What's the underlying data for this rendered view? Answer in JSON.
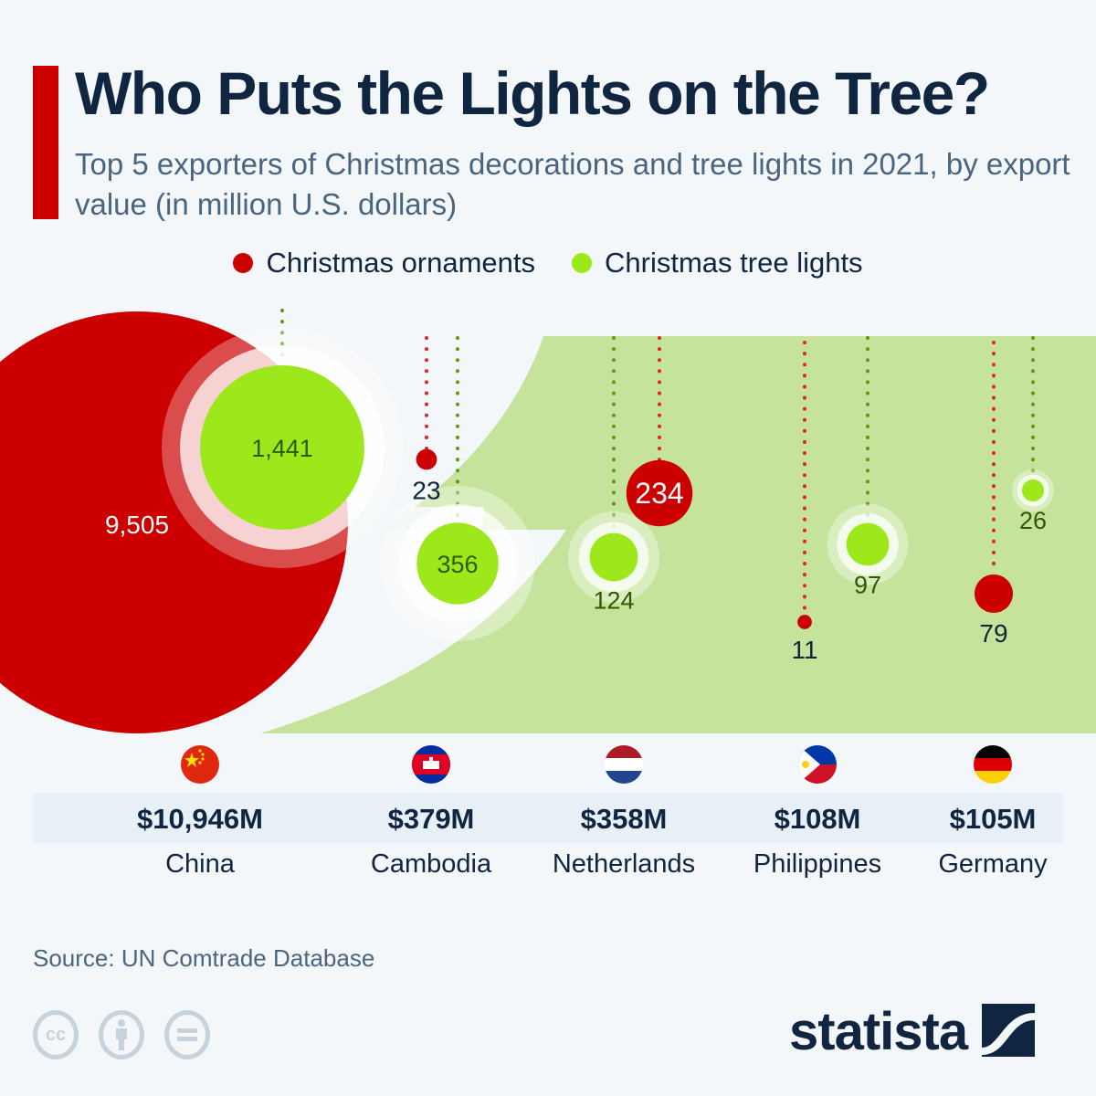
{
  "header": {
    "title": "Who Puts the Lights on the Tree?",
    "subtitle": "Top 5 exporters of Christmas decorations and tree lights in 2021, by export value (in million U.S. dollars)"
  },
  "colors": {
    "ornaments": "#cc0000",
    "lights": "#9de81a",
    "accent": "#cc0000",
    "text": "#0f2540",
    "background_green": "#c6e39b"
  },
  "legend": [
    {
      "label": "Christmas ornaments",
      "color": "#cc0000"
    },
    {
      "label": "Christmas tree lights",
      "color": "#9de81a"
    }
  ],
  "chart_data": {
    "type": "bubble",
    "title": "Who Puts the Lights on the Tree?",
    "subtitle": "Top 5 exporters of Christmas decorations and tree lights in 2021, by export value (in million U.S. dollars)",
    "categories": [
      "China",
      "Cambodia",
      "Netherlands",
      "Philippines",
      "Germany"
    ],
    "series": [
      {
        "name": "Christmas ornaments",
        "values": [
          9505,
          23,
          234,
          11,
          79
        ],
        "labels": [
          "9,505",
          "23",
          "234",
          "11",
          "79"
        ]
      },
      {
        "name": "Christmas tree lights",
        "values": [
          1441,
          356,
          124,
          97,
          26
        ],
        "labels": [
          "1,441",
          "356",
          "124",
          "97",
          "26"
        ]
      }
    ],
    "totals": [
      "$10,946M",
      "$379M",
      "$358M",
      "$108M",
      "$105M"
    ],
    "legend_position": "top-center"
  },
  "countries": [
    {
      "name": "China",
      "total": "$10,946M",
      "flag": "china-flag"
    },
    {
      "name": "Cambodia",
      "total": "$379M",
      "flag": "cambodia-flag"
    },
    {
      "name": "Netherlands",
      "total": "$358M",
      "flag": "netherlands-flag"
    },
    {
      "name": "Philippines",
      "total": "$108M",
      "flag": "philippines-flag"
    },
    {
      "name": "Germany",
      "total": "$105M",
      "flag": "germany-flag"
    }
  ],
  "footer": {
    "source": "Source: UN Comtrade Database",
    "cc_label": "cc",
    "logo": "statista"
  }
}
